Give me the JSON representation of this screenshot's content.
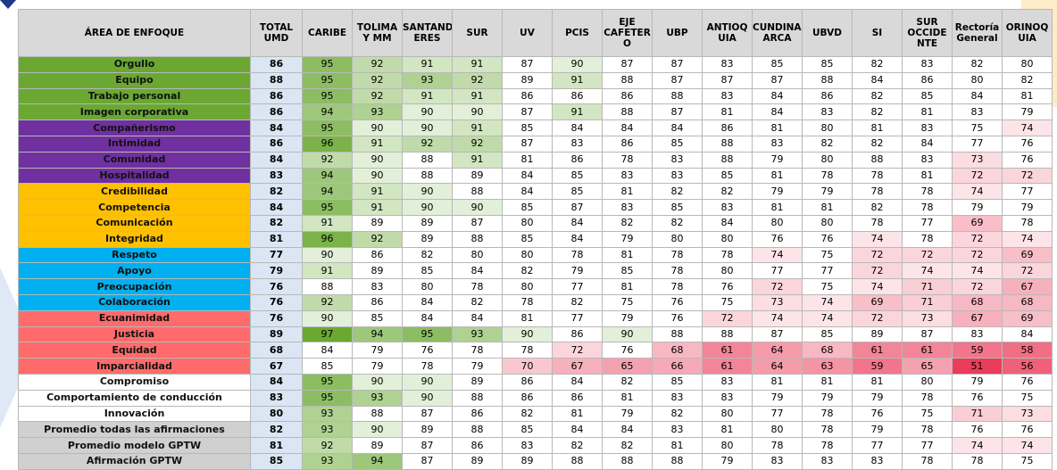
{
  "headers": [
    "ÁREA DE ENFOQUE",
    "TOTAL UMD",
    "CARIBE",
    "TOLIMA Y MM",
    "SANTANDERES",
    "SUR",
    "UV",
    "PCIS",
    "EJE CAFETERO",
    "UBP",
    "ANTIOQUIA",
    "CUNDINAMARCA",
    "UBVD",
    "SI",
    "SUR OCCIDENTE",
    "Rectoría General",
    "ORINOQUIA"
  ],
  "header_display": [
    "ÁREA DE ENFOQUE",
    "TOTAL UMD",
    "CARIBE",
    "TOLIMA Y MM",
    "SANTAND ERES",
    "SUR",
    "UV",
    "PCIS",
    "EJE CAFETER O",
    "UBP",
    "ANTIOQ UIA",
    "CUNDINAM ARCA",
    "UBVD",
    "SI",
    "SUR OCCIDE NTE",
    "Rectoría General",
    "ORINOQ UIA"
  ],
  "group_colors": {
    "green": "#6aa832",
    "purple": "#7030a0",
    "orange": "#ffc000",
    "blue": "#00b0f0",
    "red": "#ff6b6b",
    "white": "#ffffff",
    "gray": "#d0d0d0"
  },
  "rows": [
    {
      "label": "Orgullo",
      "group": "green",
      "values": [
        86,
        95,
        92,
        91,
        91,
        87,
        90,
        87,
        87,
        83,
        85,
        85,
        82,
        83,
        82,
        80
      ]
    },
    {
      "label": "Equipo",
      "group": "green",
      "values": [
        88,
        95,
        92,
        93,
        92,
        89,
        91,
        88,
        87,
        87,
        87,
        88,
        84,
        86,
        80,
        82
      ]
    },
    {
      "label": "Trabajo personal",
      "group": "green",
      "values": [
        86,
        95,
        92,
        91,
        91,
        86,
        86,
        86,
        88,
        83,
        84,
        86,
        82,
        85,
        84,
        81
      ]
    },
    {
      "label": "Imagen corporativa",
      "group": "green",
      "values": [
        86,
        94,
        93,
        90,
        90,
        87,
        91,
        88,
        87,
        81,
        84,
        83,
        82,
        81,
        83,
        79
      ]
    },
    {
      "label": "Compañerismo",
      "group": "purple",
      "values": [
        84,
        95,
        90,
        90,
        91,
        85,
        84,
        84,
        84,
        86,
        81,
        80,
        81,
        83,
        75,
        74
      ]
    },
    {
      "label": "Intimidad",
      "group": "purple",
      "values": [
        86,
        96,
        91,
        92,
        92,
        87,
        83,
        86,
        85,
        88,
        83,
        82,
        82,
        84,
        77,
        76
      ]
    },
    {
      "label": "Comunidad",
      "group": "purple",
      "values": [
        84,
        92,
        90,
        88,
        91,
        81,
        86,
        78,
        83,
        88,
        79,
        80,
        88,
        83,
        73,
        76
      ]
    },
    {
      "label": "Hospitalidad",
      "group": "purple",
      "values": [
        83,
        94,
        90,
        88,
        89,
        84,
        85,
        83,
        83,
        85,
        81,
        78,
        78,
        81,
        72,
        72
      ]
    },
    {
      "label": "Credibilidad",
      "group": "orange",
      "values": [
        82,
        94,
        91,
        90,
        88,
        84,
        85,
        81,
        82,
        82,
        79,
        79,
        78,
        78,
        74,
        77
      ]
    },
    {
      "label": "Competencia",
      "group": "orange",
      "values": [
        84,
        95,
        91,
        90,
        90,
        85,
        87,
        83,
        85,
        83,
        81,
        81,
        82,
        78,
        79,
        79
      ]
    },
    {
      "label": "Comunicación",
      "group": "orange",
      "values": [
        82,
        91,
        89,
        89,
        87,
        80,
        84,
        82,
        82,
        84,
        80,
        80,
        78,
        77,
        69,
        78
      ]
    },
    {
      "label": "Integridad",
      "group": "orange",
      "values": [
        81,
        96,
        92,
        89,
        88,
        85,
        84,
        79,
        80,
        80,
        76,
        76,
        74,
        78,
        72,
        74
      ]
    },
    {
      "label": "Respeto",
      "group": "blue",
      "values": [
        77,
        90,
        86,
        82,
        80,
        80,
        78,
        81,
        78,
        78,
        74,
        75,
        72,
        72,
        72,
        69
      ]
    },
    {
      "label": "Apoyo",
      "group": "blue",
      "values": [
        79,
        91,
        89,
        85,
        84,
        82,
        79,
        85,
        78,
        80,
        77,
        77,
        72,
        74,
        74,
        72
      ]
    },
    {
      "label": "Preocupación",
      "group": "blue",
      "values": [
        76,
        88,
        83,
        80,
        78,
        80,
        77,
        81,
        78,
        76,
        72,
        75,
        74,
        71,
        72,
        67
      ]
    },
    {
      "label": "Colaboración",
      "group": "blue",
      "values": [
        76,
        92,
        86,
        84,
        82,
        78,
        82,
        75,
        76,
        75,
        73,
        74,
        69,
        71,
        68,
        68
      ]
    },
    {
      "label": "Ecuanimidad",
      "group": "red",
      "values": [
        76,
        90,
        85,
        84,
        84,
        81,
        77,
        79,
        76,
        72,
        74,
        74,
        72,
        73,
        67,
        69
      ]
    },
    {
      "label": "Justicia",
      "group": "red",
      "values": [
        89,
        97,
        94,
        95,
        93,
        90,
        86,
        90,
        88,
        88,
        87,
        85,
        89,
        87,
        83,
        84
      ]
    },
    {
      "label": "Equidad",
      "group": "red",
      "values": [
        68,
        84,
        79,
        76,
        78,
        78,
        72,
        76,
        68,
        61,
        64,
        68,
        61,
        61,
        59,
        58
      ]
    },
    {
      "label": "Imparcialidad",
      "group": "red",
      "values": [
        67,
        85,
        79,
        78,
        79,
        70,
        67,
        65,
        66,
        61,
        64,
        63,
        59,
        65,
        51,
        56
      ]
    },
    {
      "label": "Compromiso",
      "group": "white",
      "values": [
        84,
        95,
        90,
        90,
        89,
        86,
        84,
        82,
        85,
        83,
        81,
        81,
        81,
        80,
        79,
        76
      ]
    },
    {
      "label": "Comportamiento de conducción",
      "group": "white",
      "values": [
        83,
        95,
        93,
        90,
        88,
        86,
        86,
        81,
        83,
        83,
        79,
        79,
        79,
        78,
        76,
        75
      ]
    },
    {
      "label": "Innovación",
      "group": "white",
      "values": [
        80,
        93,
        88,
        87,
        86,
        82,
        81,
        79,
        82,
        80,
        77,
        78,
        76,
        75,
        71,
        73
      ]
    },
    {
      "label": "Promedio  todas las afirmaciones",
      "group": "gray",
      "values": [
        82,
        93,
        90,
        89,
        88,
        85,
        84,
        84,
        83,
        81,
        80,
        78,
        79,
        78,
        76,
        76
      ]
    },
    {
      "label": "Promedio modelo  GPTW",
      "group": "gray",
      "values": [
        81,
        92,
        89,
        87,
        86,
        83,
        82,
        82,
        81,
        80,
        78,
        78,
        77,
        77,
        74,
        74
      ]
    },
    {
      "label": "Afirmación GPTW",
      "group": "gray",
      "values": [
        85,
        93,
        94,
        87,
        89,
        89,
        88,
        88,
        88,
        79,
        83,
        83,
        83,
        78,
        78,
        75
      ]
    }
  ]
}
